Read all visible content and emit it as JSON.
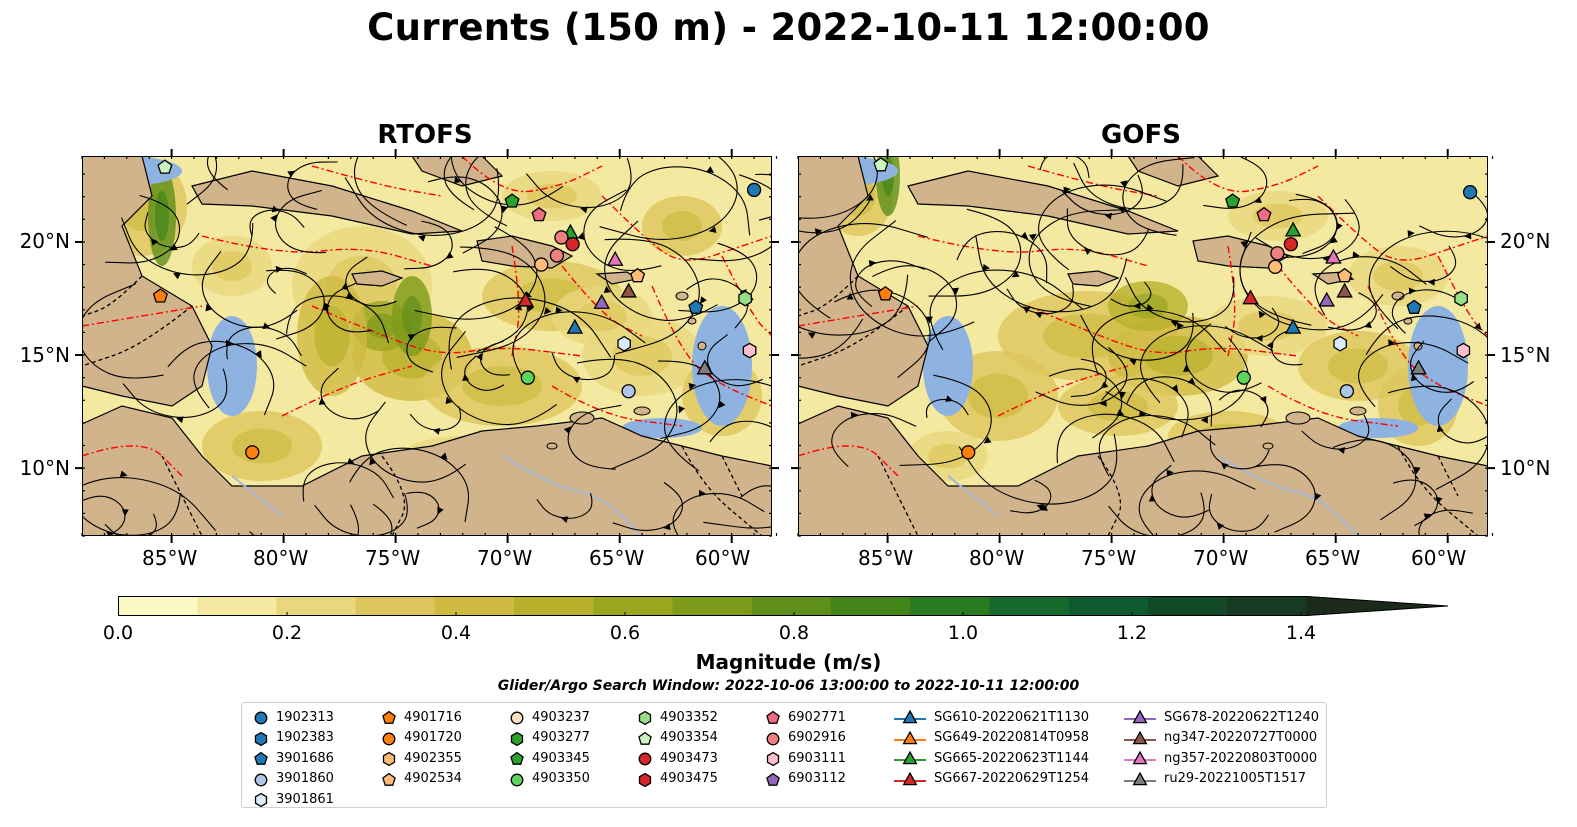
{
  "title": "Currents (150 m) - 2022-10-11 12:00:00",
  "panels": [
    {
      "title": "RTOFS"
    },
    {
      "title": "GOFS"
    }
  ],
  "axes": {
    "lon_ticks": [
      "85°W",
      "80°W",
      "75°W",
      "70°W",
      "65°W",
      "60°W"
    ],
    "lon_values": [
      -85,
      -80,
      -75,
      -70,
      -65,
      -60
    ],
    "lat_ticks": [
      "20°N",
      "15°N",
      "10°N"
    ],
    "lat_values": [
      20,
      15,
      10
    ],
    "lon_range": [
      -89,
      -58.2
    ],
    "lat_range": [
      7,
      23.8
    ]
  },
  "colorbar": {
    "label": "Magnitude (m/s)",
    "ticks": [
      "0.0",
      "0.2",
      "0.4",
      "0.6",
      "0.8",
      "1.0",
      "1.2",
      "1.4"
    ],
    "tick_values": [
      0.0,
      0.2,
      0.4,
      0.6,
      0.8,
      1.0,
      1.2,
      1.4
    ],
    "range": [
      0,
      1.5
    ],
    "extend": "max",
    "colors": [
      "#fdf9c5",
      "#f4e9a1",
      "#e9d77d",
      "#ddc65d",
      "#cfba42",
      "#b8b02c",
      "#9aa61f",
      "#7d9a1a",
      "#5f8f1a",
      "#428419",
      "#2a7a22",
      "#17692d",
      "#0f5a2e",
      "#124a28",
      "#173a22",
      "#1b2a1a"
    ]
  },
  "search_window": "Glider/Argo Search Window: 2022-10-06 13:00:00 to 2022-10-11 12:00:00",
  "legend": {
    "columns": [
      [
        {
          "label": "1902313",
          "marker": "circle",
          "color": "#1f77b4"
        },
        {
          "label": "1902383",
          "marker": "hexagon",
          "color": "#1f77b4"
        },
        {
          "label": "3901686",
          "marker": "pentagon",
          "color": "#1f77b4"
        },
        {
          "label": "3901860",
          "marker": "circle",
          "color": "#aec7e8"
        },
        {
          "label": "3901861",
          "marker": "hexagon",
          "color": "#dbeafc"
        }
      ],
      [
        {
          "label": "4901716",
          "marker": "pentagon",
          "color": "#ff7f0e"
        },
        {
          "label": "4901720",
          "marker": "circle",
          "color": "#ff7f0e"
        },
        {
          "label": "4902355",
          "marker": "hexagon",
          "color": "#ffbb78"
        },
        {
          "label": "4902534",
          "marker": "pentagon",
          "color": "#ffbb78"
        }
      ],
      [
        {
          "label": "4903237",
          "marker": "circle",
          "color": "#ffe0c0"
        },
        {
          "label": "4903277",
          "marker": "hexagon",
          "color": "#2ca02c"
        },
        {
          "label": "4903345",
          "marker": "pentagon",
          "color": "#2ca02c"
        },
        {
          "label": "4903350",
          "marker": "circle",
          "color": "#5fd35f"
        }
      ],
      [
        {
          "label": "4903352",
          "marker": "hexagon",
          "color": "#98df8a"
        },
        {
          "label": "4903354",
          "marker": "pentagon",
          "color": "#ccf5c0"
        },
        {
          "label": "4903473",
          "marker": "circle",
          "color": "#d62728"
        },
        {
          "label": "4903475",
          "marker": "hexagon",
          "color": "#d62728"
        }
      ],
      [
        {
          "label": "6902771",
          "marker": "pentagon",
          "color": "#f06a80"
        },
        {
          "label": "6902916",
          "marker": "circle",
          "color": "#f08080"
        },
        {
          "label": "6903111",
          "marker": "hexagon",
          "color": "#ffc0cb"
        },
        {
          "label": "6903112",
          "marker": "pentagon",
          "color": "#9467bd"
        }
      ],
      [
        {
          "label": "SG610-20220621T1130",
          "marker": "triangle",
          "color": "#1f77b4"
        },
        {
          "label": "SG649-20220814T0958",
          "marker": "triangle",
          "color": "#ff7f0e"
        },
        {
          "label": "SG665-20220623T1144",
          "marker": "triangle",
          "color": "#2ca02c"
        },
        {
          "label": "SG667-20220629T1254",
          "marker": "triangle",
          "color": "#d62728"
        }
      ],
      [
        {
          "label": "SG678-20220622T1240",
          "marker": "triangle",
          "color": "#9467bd"
        },
        {
          "label": "ng347-20220727T0000",
          "marker": "triangle",
          "color": "#8c564b"
        },
        {
          "label": "ng357-20220803T0000",
          "marker": "triangle",
          "color": "#e377c2"
        },
        {
          "label": "ru29-20221005T1517",
          "marker": "triangle",
          "color": "#7f7f7f"
        }
      ]
    ]
  },
  "map_colors": {
    "land": "#d2b48c",
    "ocean_low": "#fdf6c0",
    "shelf": "#8fb3e0",
    "eez": "#ff0000",
    "stream": "#000000"
  }
}
